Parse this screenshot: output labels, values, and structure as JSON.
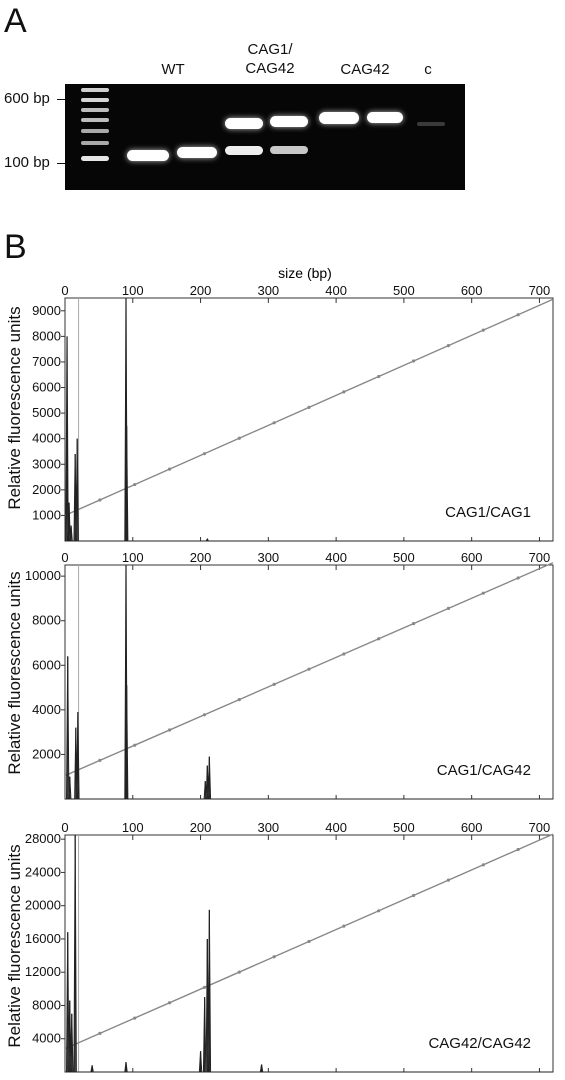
{
  "panel_a": {
    "letter": "A",
    "lanes": [
      "WT",
      "CAG1/ CAG42",
      "CAG42",
      "c"
    ],
    "ladder_labels": [
      "600 bp",
      "100 bp"
    ]
  },
  "panel_b": {
    "letter": "B",
    "top_axis_label": "size (bp)",
    "ylabel": "Relative fluorescence units"
  },
  "chart_data": [
    {
      "type": "line",
      "title": "",
      "sample_label": "CAG1/CAG1",
      "xlabel": "size (bp)",
      "ylabel": "Relative fluorescence units",
      "xlim": [
        0,
        720
      ],
      "x_ticks": [
        0,
        100,
        200,
        300,
        400,
        500,
        600,
        700
      ],
      "ylim": [
        0,
        9500
      ],
      "y_ticks": [
        1000,
        2000,
        3000,
        4000,
        5000,
        6000,
        7000,
        8000,
        9000
      ],
      "size_standard_line": {
        "x": [
          0,
          720
        ],
        "y": [
          1000,
          9450
        ]
      },
      "reference_marker_x": [
        20,
        90
      ],
      "series": [
        {
          "peaks": [
            {
              "x": 3,
              "y": 8000
            },
            {
              "x": 6,
              "y": 1500
            },
            {
              "x": 9,
              "y": 600
            },
            {
              "x": 15,
              "y": 3400
            },
            {
              "x": 18,
              "y": 4000
            },
            {
              "x": 90,
              "y": 9500
            },
            {
              "x": 91,
              "y": 4500
            },
            {
              "x": 210,
              "y": 80
            }
          ]
        }
      ]
    },
    {
      "type": "line",
      "title": "",
      "sample_label": "CAG1/CAG42",
      "xlabel": "size (bp)",
      "ylabel": "Relative fluorescence units",
      "xlim": [
        0,
        720
      ],
      "x_ticks": [
        0,
        100,
        200,
        300,
        400,
        500,
        600,
        700
      ],
      "ylim": [
        0,
        10500
      ],
      "y_ticks": [
        2000,
        4000,
        6000,
        8000,
        10000
      ],
      "size_standard_line": {
        "x": [
          0,
          720
        ],
        "y": [
          1050,
          10600
        ]
      },
      "reference_marker_x": [
        20,
        90
      ],
      "series": [
        {
          "peaks": [
            {
              "x": 4,
              "y": 6400
            },
            {
              "x": 7,
              "y": 1000
            },
            {
              "x": 16,
              "y": 3200
            },
            {
              "x": 19,
              "y": 3900
            },
            {
              "x": 90,
              "y": 10500
            },
            {
              "x": 91,
              "y": 5100
            },
            {
              "x": 207,
              "y": 800
            },
            {
              "x": 210,
              "y": 1500
            },
            {
              "x": 213,
              "y": 1900
            }
          ]
        }
      ]
    },
    {
      "type": "line",
      "title": "",
      "sample_label": "CAG42/CAG42",
      "xlabel": "size (bp)",
      "ylabel": "Relative fluorescence units",
      "xlim": [
        0,
        720
      ],
      "x_ticks": [
        0,
        100,
        200,
        300,
        400,
        500,
        600,
        700
      ],
      "ylim": [
        0,
        28500
      ],
      "y_ticks": [
        4000,
        8000,
        12000,
        16000,
        20000,
        24000,
        28000
      ],
      "size_standard_line": {
        "x": [
          0,
          720
        ],
        "y": [
          2800,
          28600
        ]
      },
      "reference_marker_x": [
        20
      ],
      "series": [
        {
          "peaks": [
            {
              "x": 4,
              "y": 16800
            },
            {
              "x": 7,
              "y": 8600
            },
            {
              "x": 10,
              "y": 7000
            },
            {
              "x": 15,
              "y": 28500
            },
            {
              "x": 40,
              "y": 800
            },
            {
              "x": 90,
              "y": 1200
            },
            {
              "x": 200,
              "y": 2500
            },
            {
              "x": 206,
              "y": 9000
            },
            {
              "x": 210,
              "y": 16000
            },
            {
              "x": 213,
              "y": 19500
            },
            {
              "x": 290,
              "y": 900
            }
          ]
        }
      ]
    }
  ]
}
